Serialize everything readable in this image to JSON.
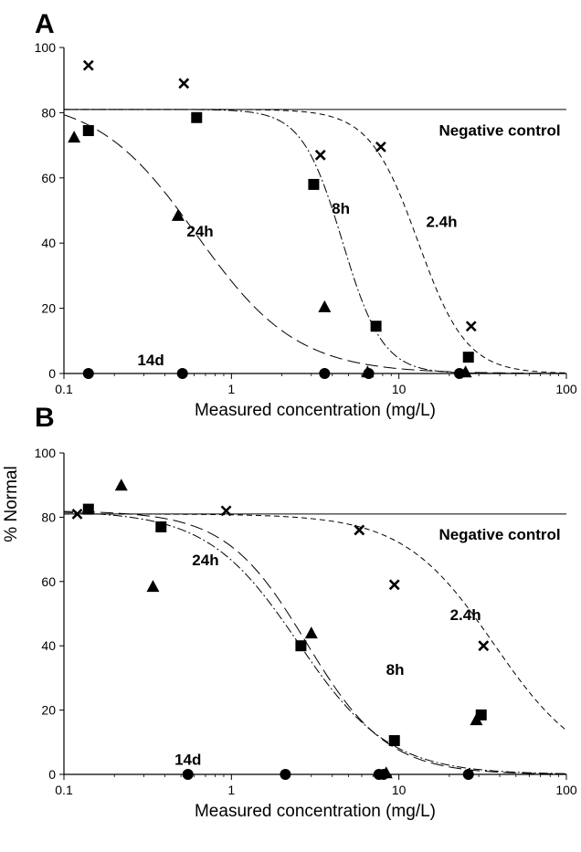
{
  "ylabel": "% Normal",
  "chart_data": [
    {
      "type": "scatter",
      "panel": "A",
      "xlabel": "Measured concentration (mg/L)",
      "xscale": "log",
      "xlim": [
        0.1,
        100
      ],
      "ylim": [
        0,
        100
      ],
      "xticks": [
        "0.1",
        "1",
        "10",
        "100"
      ],
      "yticks": [
        "0",
        "20",
        "40",
        "60",
        "80",
        "100"
      ],
      "legend": "none",
      "grid": false,
      "negative_control": 81,
      "series": [
        {
          "marker": "x",
          "points": [
            [
              0.14,
              94.5
            ],
            [
              0.52,
              89
            ],
            [
              3.4,
              67
            ],
            [
              7.8,
              69.5
            ],
            [
              27,
              14.5
            ]
          ]
        },
        {
          "marker": "square",
          "points": [
            [
              0.14,
              74.5
            ],
            [
              0.62,
              78.5
            ],
            [
              3.1,
              58
            ],
            [
              7.3,
              14.5
            ],
            [
              26,
              5
            ]
          ]
        },
        {
          "marker": "triangle",
          "points": [
            [
              0.115,
              72.5
            ],
            [
              0.48,
              48.5
            ],
            [
              3.6,
              20.5
            ],
            [
              6.5,
              0.5
            ],
            [
              25,
              0.5
            ]
          ]
        },
        {
          "marker": "circle",
          "points": [
            [
              0.14,
              0
            ],
            [
              0.51,
              0
            ],
            [
              3.6,
              0
            ],
            [
              6.6,
              0
            ],
            [
              23,
              0
            ]
          ]
        }
      ],
      "curves": [
        {
          "label": "2.4h",
          "style": "dashed",
          "top": 81,
          "ec50": 13,
          "slope": 3.0
        },
        {
          "label": "8h",
          "style": "dashdot",
          "top": 81,
          "ec50": 4.6,
          "slope": 3.6
        },
        {
          "label": "24h",
          "style": "longdash",
          "top": 85,
          "ec50": 0.62,
          "slope": 1.45
        },
        {
          "label": "14d",
          "style": "solid",
          "top": 0,
          "ec50": 1,
          "slope": 1
        }
      ],
      "annotations": [
        {
          "text": "Negative control",
          "x": 40,
          "y": 73
        },
        {
          "text": "2.4h",
          "x": 18,
          "y": 45
        },
        {
          "text": "8h",
          "x": 4.5,
          "y": 49
        },
        {
          "text": "24h",
          "x": 0.65,
          "y": 42
        },
        {
          "text": "14d",
          "x": 0.33,
          "y": 2.5
        }
      ]
    },
    {
      "type": "scatter",
      "panel": "B",
      "xlabel": "Measured concentration (mg/L)",
      "xscale": "log",
      "xlim": [
        0.1,
        100
      ],
      "ylim": [
        0,
        100
      ],
      "xticks": [
        "0.1",
        "1",
        "10",
        "100"
      ],
      "yticks": [
        "0",
        "20",
        "40",
        "60",
        "80",
        "100"
      ],
      "legend": "none",
      "grid": false,
      "negative_control": 81,
      "series": [
        {
          "marker": "x",
          "points": [
            [
              0.12,
              81
            ],
            [
              0.93,
              82
            ],
            [
              5.8,
              76
            ],
            [
              9.4,
              59
            ],
            [
              32,
              40
            ]
          ]
        },
        {
          "marker": "square",
          "points": [
            [
              0.14,
              82.5
            ],
            [
              0.38,
              77
            ],
            [
              2.6,
              40
            ],
            [
              9.4,
              10.5
            ],
            [
              31,
              18.5
            ]
          ]
        },
        {
          "marker": "triangle",
          "points": [
            [
              0.22,
              90
            ],
            [
              0.34,
              58.5
            ],
            [
              3.0,
              44
            ],
            [
              8.4,
              0.5
            ],
            [
              29,
              17
            ]
          ]
        },
        {
          "marker": "circle",
          "points": [
            [
              0.55,
              0
            ],
            [
              2.1,
              0
            ],
            [
              7.6,
              0
            ],
            [
              8.1,
              0
            ],
            [
              26,
              0
            ]
          ]
        }
      ],
      "curves": [
        {
          "label": "2.4h",
          "style": "dashed",
          "top": 81,
          "ec50": 37,
          "slope": 1.6
        },
        {
          "label": "8h",
          "style": "dashdot",
          "top": 82,
          "ec50": 2.5,
          "slope": 1.6
        },
        {
          "label": "24h",
          "style": "longdash",
          "top": 82,
          "ec50": 2.8,
          "slope": 1.8
        },
        {
          "label": "14d",
          "style": "solid",
          "top": 0,
          "ec50": 1,
          "slope": 1
        }
      ],
      "annotations": [
        {
          "text": "Negative control",
          "x": 40,
          "y": 73
        },
        {
          "text": "2.4h",
          "x": 25,
          "y": 48
        },
        {
          "text": "8h",
          "x": 9.5,
          "y": 31
        },
        {
          "text": "24h",
          "x": 0.7,
          "y": 65
        },
        {
          "text": "14d",
          "x": 0.55,
          "y": 3
        }
      ]
    }
  ]
}
